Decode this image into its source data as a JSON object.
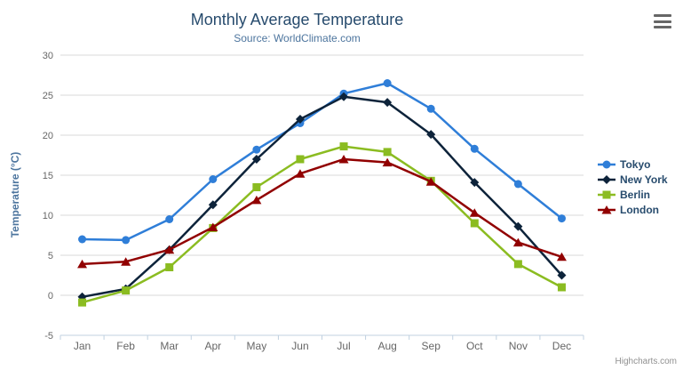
{
  "chart_data": {
    "type": "line",
    "title": "Monthly Average Temperature",
    "subtitle": "Source: WorldClimate.com",
    "xlabel": "",
    "ylabel": "Temperature (°C)",
    "categories": [
      "Jan",
      "Feb",
      "Mar",
      "Apr",
      "May",
      "Jun",
      "Jul",
      "Aug",
      "Sep",
      "Oct",
      "Nov",
      "Dec"
    ],
    "series": [
      {
        "name": "Tokyo",
        "color": "#2f7ed8",
        "marker": "circle",
        "values": [
          7.0,
          6.9,
          9.5,
          14.5,
          18.2,
          21.5,
          25.2,
          26.5,
          23.3,
          18.3,
          13.9,
          9.6
        ]
      },
      {
        "name": "New York",
        "color": "#0d233a",
        "marker": "diamond",
        "values": [
          -0.2,
          0.8,
          5.7,
          11.3,
          17.0,
          22.0,
          24.8,
          24.1,
          20.1,
          14.1,
          8.6,
          2.5
        ]
      },
      {
        "name": "Berlin",
        "color": "#8bbc21",
        "marker": "square",
        "values": [
          -0.9,
          0.6,
          3.5,
          8.4,
          13.5,
          17.0,
          18.6,
          17.9,
          14.3,
          9.0,
          3.9,
          1.0
        ]
      },
      {
        "name": "London",
        "color": "#910000",
        "marker": "triangle",
        "values": [
          3.9,
          4.2,
          5.7,
          8.5,
          11.9,
          15.2,
          17.0,
          16.6,
          14.2,
          10.3,
          6.6,
          4.8
        ]
      }
    ],
    "ylim": [
      -5,
      30
    ],
    "ytick_step": 5,
    "grid": true,
    "legend_position": "right",
    "colors": {
      "grid_line": "#d8d8d8",
      "axis_line": "#c0d0e0",
      "axis_label": "#666666",
      "title": "#274b6d",
      "subtitle": "#4d759e"
    }
  },
  "export_menu": {
    "icon": "hamburger-icon"
  },
  "credits": {
    "label": "Highcharts.com"
  }
}
